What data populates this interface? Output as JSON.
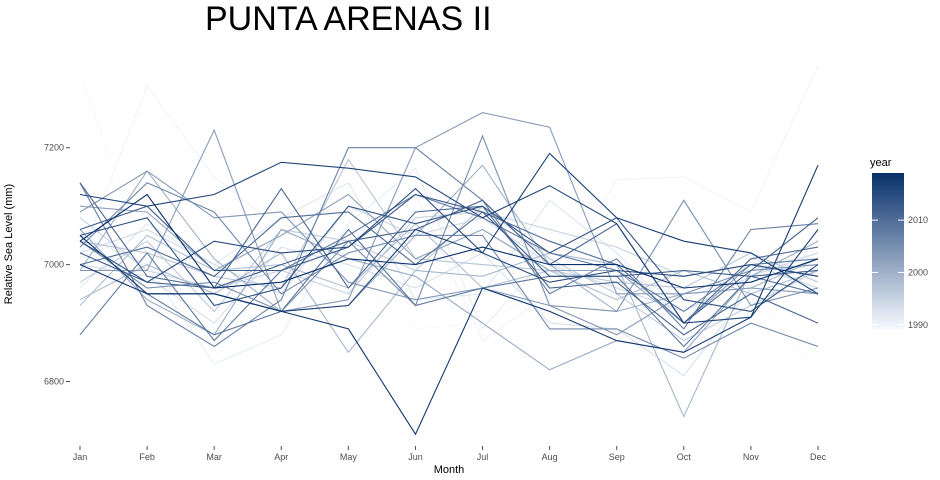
{
  "chart_data": {
    "type": "line",
    "title": "PUNTA ARENAS II",
    "xlabel": "Month",
    "ylabel": "Relative Sea Level (mm)",
    "categories": [
      "Jan",
      "Feb",
      "Mar",
      "Apr",
      "May",
      "Jun",
      "Jul",
      "Aug",
      "Sep",
      "Oct",
      "Nov",
      "Dec"
    ],
    "ylim": [
      6700,
      7350
    ],
    "yticks": [
      6800,
      7000,
      7200
    ],
    "grid": false,
    "legend": {
      "title": "year",
      "position": "right",
      "type": "colorbar",
      "range": [
        1989,
        2019
      ],
      "ticks": [
        1990,
        2000,
        2010
      ],
      "color_low": "#f7fbff",
      "color_high": "#08306b"
    },
    "series": [
      {
        "year": 1989,
        "values": [
          7325,
          7010,
          6930,
          7040,
          6990,
          6890,
          6900,
          6960,
          6940,
          6860,
          6950,
          6810
        ]
      },
      {
        "year": 1990,
        "values": [
          7010,
          7305,
          7150,
          7060,
          7030,
          7120,
          6870,
          6950,
          7145,
          7150,
          7090,
          7340
        ]
      },
      {
        "year": 1991,
        "values": [
          7050,
          7000,
          6830,
          6880,
          7070,
          7165,
          6890,
          7020,
          6990,
          6940,
          6990,
          7020
        ]
      },
      {
        "year": 1992,
        "values": [
          6960,
          7070,
          7000,
          7080,
          7140,
          6940,
          6950,
          7110,
          7020,
          6900,
          7010,
          6990
        ]
      },
      {
        "year": 1993,
        "values": [
          7000,
          6980,
          6900,
          7030,
          7000,
          6960,
          7020,
          6900,
          6890,
          6810,
          6960,
          6950
        ]
      },
      {
        "year": 1994,
        "values": [
          7020,
          7060,
          7000,
          6950,
          7100,
          7050,
          7080,
          7000,
          6960,
          6920,
          6980,
          7020
        ]
      },
      {
        "year": 1995,
        "values": [
          7080,
          6990,
          6960,
          6990,
          6950,
          7080,
          7090,
          7060,
          7030,
          6980,
          7000,
          6960
        ]
      },
      {
        "year": 1996,
        "values": [
          6970,
          7040,
          6920,
          7060,
          7040,
          6990,
          7100,
          7010,
          6950,
          6870,
          6930,
          6990
        ]
      },
      {
        "year": 1997,
        "values": [
          7040,
          7020,
          6980,
          6960,
          7180,
          7010,
          7000,
          6990,
          6970,
          6960,
          7020,
          6970
        ]
      },
      {
        "year": 1998,
        "values": [
          6930,
          7050,
          6990,
          7000,
          6960,
          7070,
          6960,
          6990,
          6940,
          6990,
          6950,
          6990
        ]
      },
      {
        "year": 1999,
        "values": [
          6940,
          7000,
          6950,
          7020,
          6850,
          6990,
          6980,
          7020,
          7000,
          6740,
          6990,
          7000
        ]
      },
      {
        "year": 2000,
        "values": [
          6990,
          7160,
          7010,
          6920,
          6930,
          7050,
          7170,
          7000,
          6920,
          6950,
          6960,
          7010
        ]
      },
      {
        "year": 2001,
        "values": [
          7060,
          6940,
          6880,
          7060,
          7010,
          6980,
          6900,
          6820,
          6870,
          6850,
          6980,
          7040
        ]
      },
      {
        "year": 2002,
        "values": [
          7100,
          7090,
          6990,
          7050,
          7120,
          7010,
          7060,
          6990,
          6990,
          6900,
          7000,
          6980
        ]
      },
      {
        "year": 2003,
        "values": [
          6990,
          6990,
          7230,
          6920,
          6940,
          7200,
          7260,
          7235,
          6950,
          6950,
          6960,
          6950
        ]
      },
      {
        "year": 2004,
        "values": [
          7090,
          7160,
          7080,
          7090,
          6970,
          6940,
          6960,
          6930,
          6880,
          6950,
          6990,
          7000
        ]
      },
      {
        "year": 2005,
        "values": [
          7040,
          6960,
          6970,
          6920,
          7040,
          6930,
          7220,
          6930,
          6920,
          7110,
          6930,
          6960
        ]
      },
      {
        "year": 2006,
        "values": [
          7030,
          7140,
          7090,
          6950,
          7020,
          7050,
          7050,
          6890,
          6890,
          6840,
          6900,
          6860
        ]
      },
      {
        "year": 2007,
        "values": [
          7140,
          6930,
          6860,
          6940,
          7200,
          7200,
          7110,
          6950,
          7010,
          6890,
          7060,
          7070
        ]
      },
      {
        "year": 2008,
        "values": [
          6880,
          7020,
          6870,
          6990,
          7050,
          7120,
          7080,
          7020,
          6990,
          6920,
          7000,
          7010
        ]
      },
      {
        "year": 2009,
        "values": [
          7050,
          6950,
          6880,
          6920,
          7060,
          6930,
          6960,
          6980,
          6980,
          6860,
          6980,
          6950
        ]
      },
      {
        "year": 2010,
        "values": [
          7000,
          7030,
          6980,
          7080,
          7090,
          7000,
          7090,
          7040,
          7000,
          6900,
          7010,
          7030
        ]
      },
      {
        "year": 2011,
        "values": [
          7140,
          6980,
          6960,
          7130,
          6960,
          7090,
          7100,
          6960,
          6970,
          6880,
          6950,
          6900
        ]
      },
      {
        "year": 2012,
        "values": [
          7020,
          6970,
          6960,
          7000,
          7040,
          7060,
          7110,
          7000,
          7070,
          6900,
          6990,
          7080
        ]
      },
      {
        "year": 2013,
        "values": [
          7060,
          7100,
          6990,
          6990,
          7030,
          7120,
          7090,
          6980,
          6980,
          6990,
          6980,
          6990
        ]
      },
      {
        "year": 2014,
        "values": [
          7050,
          7080,
          6930,
          6960,
          7100,
          7070,
          7100,
          7020,
          7080,
          6940,
          6920,
          7000
        ]
      },
      {
        "year": 2015,
        "values": [
          7040,
          6970,
          7040,
          7020,
          7030,
          7130,
          7020,
          6970,
          6990,
          6980,
          7000,
          6980
        ]
      },
      {
        "year": 2016,
        "values": [
          7120,
          7100,
          7120,
          7175,
          7165,
          7150,
          7080,
          7135,
          7070,
          6900,
          6910,
          7060
        ]
      },
      {
        "year": 2017,
        "values": [
          7050,
          6950,
          6950,
          6920,
          6930,
          7060,
          7020,
          7190,
          7080,
          7040,
          7020,
          6950
        ]
      },
      {
        "year": 2018,
        "values": [
          7000,
          6950,
          6950,
          6920,
          6890,
          6710,
          6960,
          6920,
          6870,
          6850,
          6910,
          7170
        ]
      },
      {
        "year": 2019,
        "values": [
          7040,
          7120,
          6960,
          6970,
          7010,
          7000,
          7030,
          7000,
          7000,
          6960,
          6970,
          7010
        ]
      }
    ]
  }
}
